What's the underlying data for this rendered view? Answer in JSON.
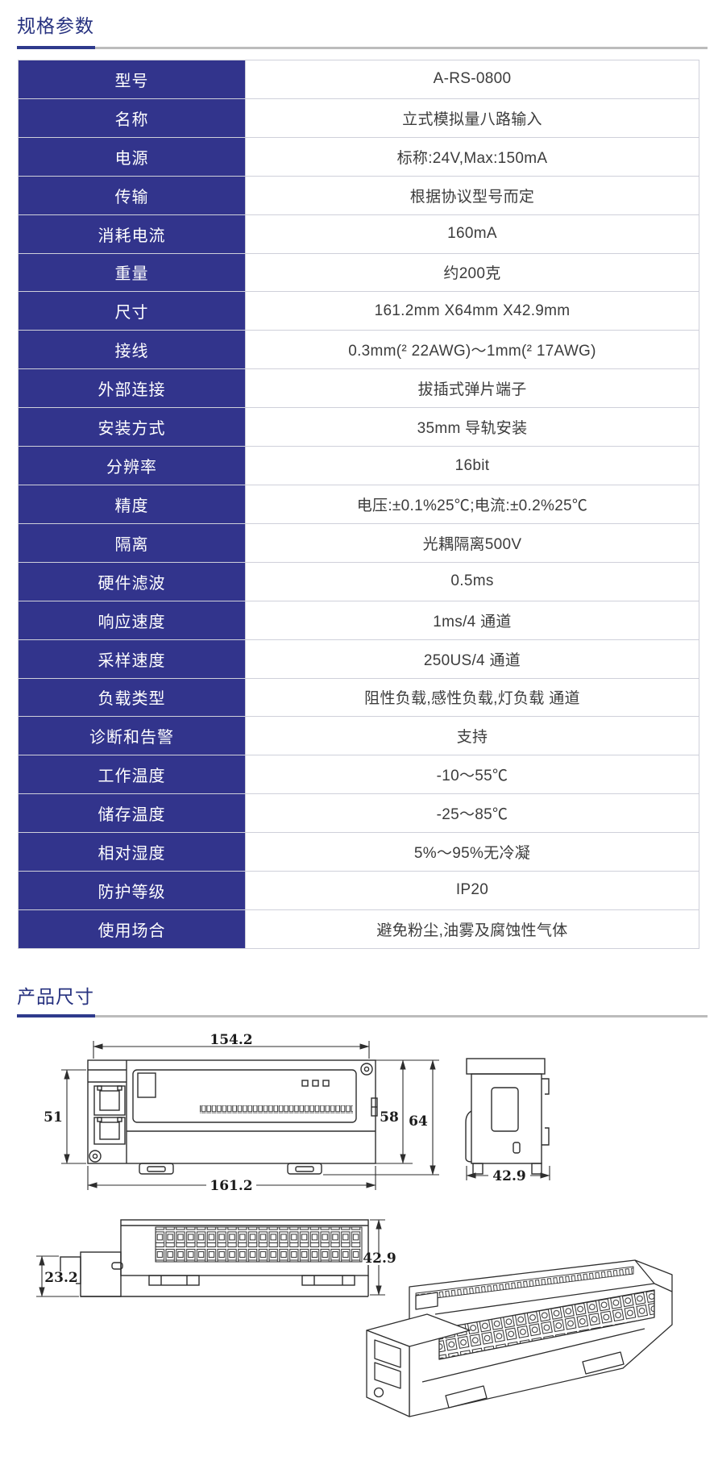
{
  "colors": {
    "accent_blue": "#32348c",
    "heading_navy": "#26317f",
    "rule_blue": "#2e3a8c",
    "rule_gray": "#bcbcbc",
    "table_border": "#cfd0da",
    "value_text": "#3c3c3c",
    "drawing_line": "#2e2e2e"
  },
  "spec_section": {
    "title": "规格参数"
  },
  "dim_section": {
    "title": "产品尺寸"
  },
  "spec_table": {
    "rows": [
      {
        "label": "型号",
        "value": "A-RS-0800"
      },
      {
        "label": "名称",
        "value": "立式模拟量八路输入"
      },
      {
        "label": "电源",
        "value": "标称:24V,Max:150mA"
      },
      {
        "label": "传输",
        "value": "根据协议型号而定"
      },
      {
        "label": "消耗电流",
        "value": "160mA"
      },
      {
        "label": "重量",
        "value": "约200克"
      },
      {
        "label": "尺寸",
        "value": "161.2mm X64mm X42.9mm"
      },
      {
        "label": "接线",
        "value": "0.3mm(² 22AWG)～1mm(² 17AWG)"
      },
      {
        "label": "外部连接",
        "value": "拔插式弹片端子"
      },
      {
        "label": "安装方式",
        "value": "35mm 导轨安装"
      },
      {
        "label": "分辨率",
        "value": "16bit"
      },
      {
        "label": "精度",
        "value": "电压:±0.1%25℃;电流:±0.2%25℃"
      },
      {
        "label": "隔离",
        "value": "光耦隔离500V"
      },
      {
        "label": "硬件滤波",
        "value": "0.5ms"
      },
      {
        "label": "响应速度",
        "value": "1ms/4 通道"
      },
      {
        "label": "采样速度",
        "value": "250US/4 通道"
      },
      {
        "label": "负载类型",
        "value": "阻性负载,感性负载,灯负载 通道"
      },
      {
        "label": "诊断和告警",
        "value": "支持"
      },
      {
        "label": "工作温度",
        "value": "-10～55℃"
      },
      {
        "label": "储存温度",
        "value": "-25～85℃"
      },
      {
        "label": "相对湿度",
        "value": "5%～95%无冷凝"
      },
      {
        "label": "防护等级",
        "value": "IP20"
      },
      {
        "label": "使用场合",
        "value": "避免粉尘,油雾及腐蚀性气体"
      }
    ]
  },
  "drawings": {
    "front": {
      "dim_top": "154.2",
      "dim_left": "51",
      "dim_right_inner": "58",
      "dim_right_outer": "64",
      "dim_bottom": "161.2"
    },
    "side": {
      "dim_width": "42.9"
    },
    "top": {
      "dim_left": "23.2",
      "dim_right": "42.9"
    }
  }
}
